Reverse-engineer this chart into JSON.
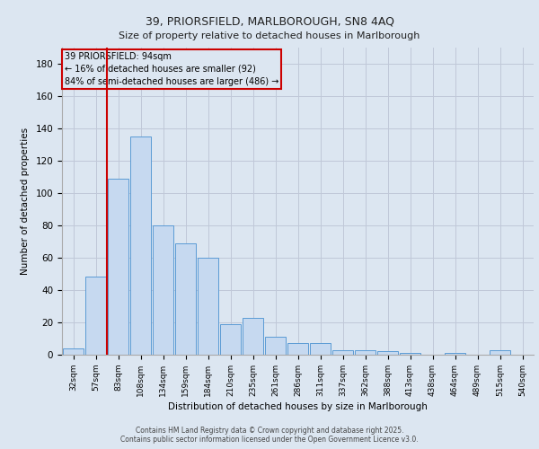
{
  "title1": "39, PRIORSFIELD, MARLBOROUGH, SN8 4AQ",
  "title2": "Size of property relative to detached houses in Marlborough",
  "xlabel": "Distribution of detached houses by size in Marlborough",
  "ylabel": "Number of detached properties",
  "categories": [
    "32sqm",
    "57sqm",
    "83sqm",
    "108sqm",
    "134sqm",
    "159sqm",
    "184sqm",
    "210sqm",
    "235sqm",
    "261sqm",
    "286sqm",
    "311sqm",
    "337sqm",
    "362sqm",
    "388sqm",
    "413sqm",
    "438sqm",
    "464sqm",
    "489sqm",
    "515sqm",
    "540sqm"
  ],
  "values": [
    4,
    48,
    109,
    135,
    80,
    69,
    60,
    19,
    23,
    11,
    7,
    7,
    3,
    3,
    2,
    1,
    0,
    1,
    0,
    3,
    0
  ],
  "bar_color": "#c6d9f0",
  "bar_edge_color": "#5b9bd5",
  "grid_color": "#c0c8d8",
  "background_color": "#dce6f1",
  "annotation_line1": "39 PRIORSFIELD: 94sqm",
  "annotation_line2": "← 16% of detached houses are smaller (92)",
  "annotation_line3": "84% of semi-detached houses are larger (486) →",
  "annotation_box_edge_color": "#cc0000",
  "vline_color": "#cc0000",
  "vline_x": 1.5,
  "ylim_max": 190,
  "yticks": [
    0,
    20,
    40,
    60,
    80,
    100,
    120,
    140,
    160,
    180
  ],
  "footer1": "Contains HM Land Registry data © Crown copyright and database right 2025.",
  "footer2": "Contains public sector information licensed under the Open Government Licence v3.0."
}
